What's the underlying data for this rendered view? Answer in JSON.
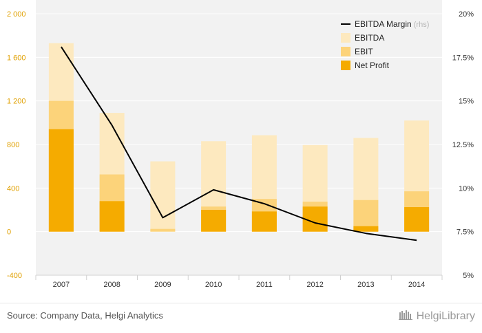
{
  "chart_data": {
    "type": "bar",
    "categories": [
      "2007",
      "2008",
      "2009",
      "2010",
      "2011",
      "2012",
      "2013",
      "2014"
    ],
    "series": [
      {
        "name": "Net Profit",
        "type": "bar",
        "axis": "left",
        "color": "#f5ab00",
        "values": [
          940,
          280,
          0,
          200,
          185,
          230,
          50,
          225
        ]
      },
      {
        "name": "EBIT",
        "type": "bar",
        "axis": "left",
        "color": "#fcd37a",
        "values": [
          1200,
          525,
          25,
          230,
          300,
          275,
          290,
          370
        ]
      },
      {
        "name": "EBITDA",
        "type": "bar",
        "axis": "left",
        "color": "#fde9bf",
        "values": [
          1730,
          1090,
          645,
          830,
          885,
          795,
          860,
          1020
        ]
      },
      {
        "name": "EBITDA Margin",
        "note": "(rhs)",
        "type": "line",
        "axis": "right",
        "color": "#000000",
        "values": [
          18.1,
          13.6,
          8.3,
          9.9,
          9.1,
          8.0,
          7.4,
          7.0
        ]
      }
    ],
    "y_left": {
      "min": -400,
      "max": 2000,
      "ticks": [
        -400,
        0,
        400,
        800,
        1200,
        1600,
        2000
      ],
      "tick_labels": [
        "-400",
        "0",
        "400",
        "800",
        "1 200",
        "1 600",
        "2 000"
      ]
    },
    "y_right": {
      "min": 5,
      "max": 20,
      "ticks": [
        5,
        7.5,
        10,
        12.5,
        15,
        17.5,
        20
      ],
      "tick_labels": [
        "5%",
        "7.5%",
        "10%",
        "12.5%",
        "15%",
        "17.5%",
        "20%"
      ]
    },
    "grid": true,
    "legend_position": "top-right"
  },
  "legend": [
    {
      "label": "EBITDA Margin",
      "note": "(rhs)",
      "kind": "line",
      "color": "#000000"
    },
    {
      "label": "EBITDA",
      "kind": "box",
      "color": "#fde9bf"
    },
    {
      "label": "EBIT",
      "kind": "box",
      "color": "#fcd37a"
    },
    {
      "label": "Net Profit",
      "kind": "box",
      "color": "#f5ab00"
    }
  ],
  "footer": {
    "source": "Source: Company Data, Helgi Analytics",
    "brand": "HelgiLibrary"
  }
}
